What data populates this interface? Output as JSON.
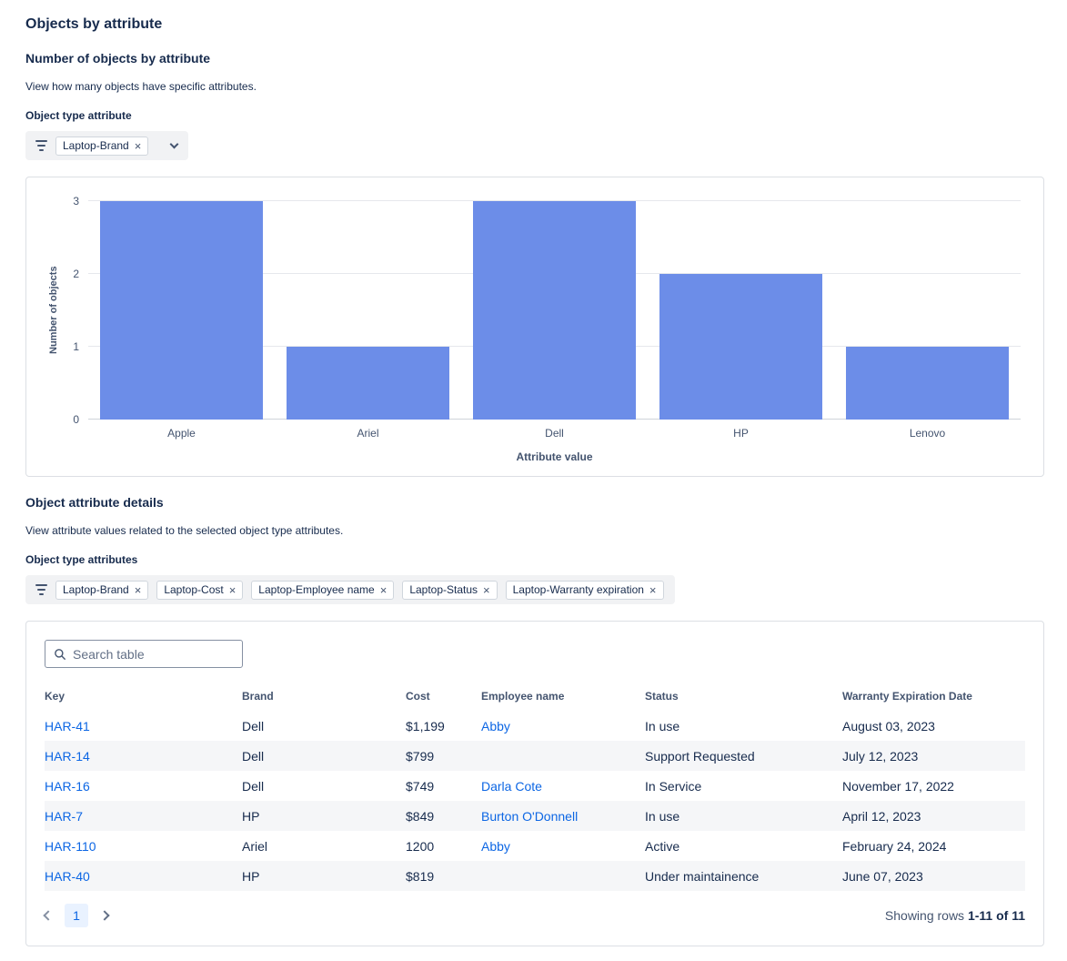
{
  "page": {
    "title": "Objects by attribute"
  },
  "icons": {
    "remove": "×"
  },
  "chart_section": {
    "heading": "Number of objects by attribute",
    "description": "View how many objects have specific attributes.",
    "filter_label": "Object type attribute",
    "filter_tags": [
      {
        "label": "Laptop-Brand"
      }
    ]
  },
  "chart_data": {
    "type": "bar",
    "categories": [
      "Apple",
      "Ariel",
      "Dell",
      "HP",
      "Lenovo"
    ],
    "values": [
      3,
      1,
      3,
      2,
      1
    ],
    "title": "",
    "xlabel": "Attribute value",
    "ylabel": "Number of objects",
    "ylim": [
      0,
      3
    ],
    "yticks": [
      0,
      1,
      2,
      3
    ],
    "bar_color": "#6c8de8",
    "grid": true,
    "legend": "none"
  },
  "details_section": {
    "heading": "Object attribute details",
    "description": "View attribute values related to the selected object type attributes.",
    "filter_label": "Object type attributes",
    "filter_tags": [
      {
        "label": "Laptop-Brand"
      },
      {
        "label": "Laptop-Cost"
      },
      {
        "label": "Laptop-Employee name"
      },
      {
        "label": "Laptop-Status"
      },
      {
        "label": "Laptop-Warranty expiration"
      }
    ]
  },
  "table": {
    "search_placeholder": "Search table",
    "columns": [
      "Key",
      "Brand",
      "Cost",
      "Employee name",
      "Status",
      "Warranty Expiration Date"
    ],
    "rows": [
      {
        "key": "HAR-41",
        "brand": "Dell",
        "cost": "$1,199",
        "employee": "Abby",
        "status": "In use",
        "warranty": "August 03, 2023"
      },
      {
        "key": "HAR-14",
        "brand": "Dell",
        "cost": "$799",
        "employee": "",
        "status": "Support Requested",
        "warranty": "July 12, 2023"
      },
      {
        "key": "HAR-16",
        "brand": "Dell",
        "cost": "$749",
        "employee": "Darla Cote",
        "status": "In Service",
        "warranty": "November 17, 2022"
      },
      {
        "key": "HAR-7",
        "brand": "HP",
        "cost": "$849",
        "employee": "Burton O'Donnell",
        "status": "In use",
        "warranty": "April 12, 2023"
      },
      {
        "key": "HAR-110",
        "brand": "Ariel",
        "cost": "1200",
        "employee": "Abby",
        "status": "Active",
        "warranty": "February 24, 2024"
      },
      {
        "key": "HAR-40",
        "brand": "HP",
        "cost": "$819",
        "employee": "",
        "status": "Under maintainence",
        "warranty": "June 07, 2023"
      }
    ],
    "pagination": {
      "current_page": "1",
      "showing_prefix": "Showing rows",
      "showing_range": "1-11 of 11"
    }
  }
}
